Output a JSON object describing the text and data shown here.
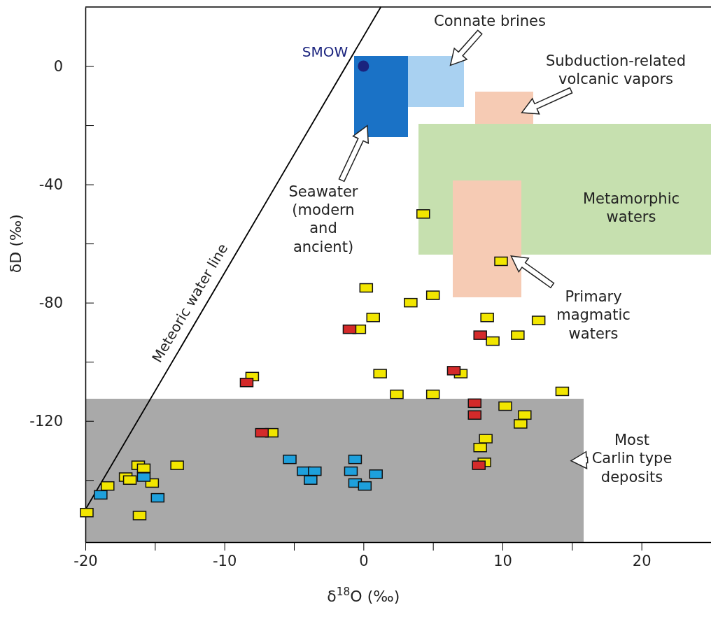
{
  "chart_data": {
    "type": "scatter",
    "xlabel": "δ$^{18}$O (‰)",
    "ylabel": "δD (‰)",
    "xlim": [
      -20,
      25
    ],
    "ylim": [
      -161,
      20
    ],
    "xticks": [
      -20,
      {
        "value": -15,
        "label": null
      },
      -10,
      {
        "value": -5,
        "label": null
      },
      0,
      {
        "value": 5,
        "label": null
      },
      10,
      {
        "value": 15,
        "label": null
      },
      20
    ],
    "yticks": [
      {
        "value": -140,
        "label": null
      },
      -120,
      {
        "value": -100,
        "label": null
      },
      -80,
      {
        "value": -60,
        "label": null
      },
      -40,
      {
        "value": -20,
        "label": null
      },
      0
    ],
    "marker": "square",
    "annotations": [
      "Seawater\n(modern\nand\nancient)",
      "Connate brines",
      "Subduction-related\nvolcanic vapors",
      "Metamorphic\nwaters",
      "Primary\nmagmatic\nwaters",
      "Most\nCarlin type\ndeposits"
    ],
    "series": [
      {
        "type": "line",
        "name": "Meteoric water line",
        "color": "#000000",
        "marker": "none",
        "x": [
          -20,
          1.25
        ],
        "values": [
          -150,
          20
        ]
      },
      {
        "name": "SMOW",
        "color": "#1a237e",
        "marker": "circle",
        "x": [
          0
        ],
        "values": [
          0
        ]
      },
      {
        "color": "#f2e600",
        "x": [
          4.3,
          9.9,
          0.2,
          5.0,
          3.4,
          0.7,
          -0.3,
          8.9,
          12.6,
          11.1,
          9.3,
          1.2,
          7.0,
          -8.0,
          2.4,
          5.0,
          14.3,
          10.2,
          11.6,
          11.3,
          -6.6,
          8.8,
          8.4,
          8.7,
          -13.4,
          -16.2,
          -15.8,
          -17.1,
          -16.8,
          -15.2,
          -18.4,
          -19.9,
          -16.1
        ],
        "values": [
          -50,
          -66,
          -75,
          -77.5,
          -80,
          -85,
          -89,
          -85,
          -86,
          -91,
          -93,
          -104,
          -104,
          -105,
          -111,
          -111,
          -110,
          -115,
          -118,
          -121,
          -124,
          -126,
          -129,
          -134,
          -135,
          -135,
          -136,
          -139,
          -140,
          -141,
          -142,
          -151,
          -152
        ]
      },
      {
        "color": "#d42a2a",
        "x": [
          -1.0,
          8.4,
          6.5,
          -8.4,
          -7.3,
          8.0,
          8.0,
          8.3
        ],
        "values": [
          -89,
          -91,
          -103,
          -107,
          -124,
          -114,
          -118,
          -135
        ]
      },
      {
        "color": "#1ea0dc",
        "x": [
          -5.3,
          -4.3,
          -3.5,
          -3.8,
          -0.6,
          -0.9,
          -0.6,
          0.9,
          0.1,
          -15.8,
          -18.9,
          -14.8
        ],
        "values": [
          -133,
          -137,
          -137,
          -140,
          -133,
          -137,
          -141,
          -138,
          -142,
          -139,
          -145,
          -146
        ]
      }
    ]
  }
}
